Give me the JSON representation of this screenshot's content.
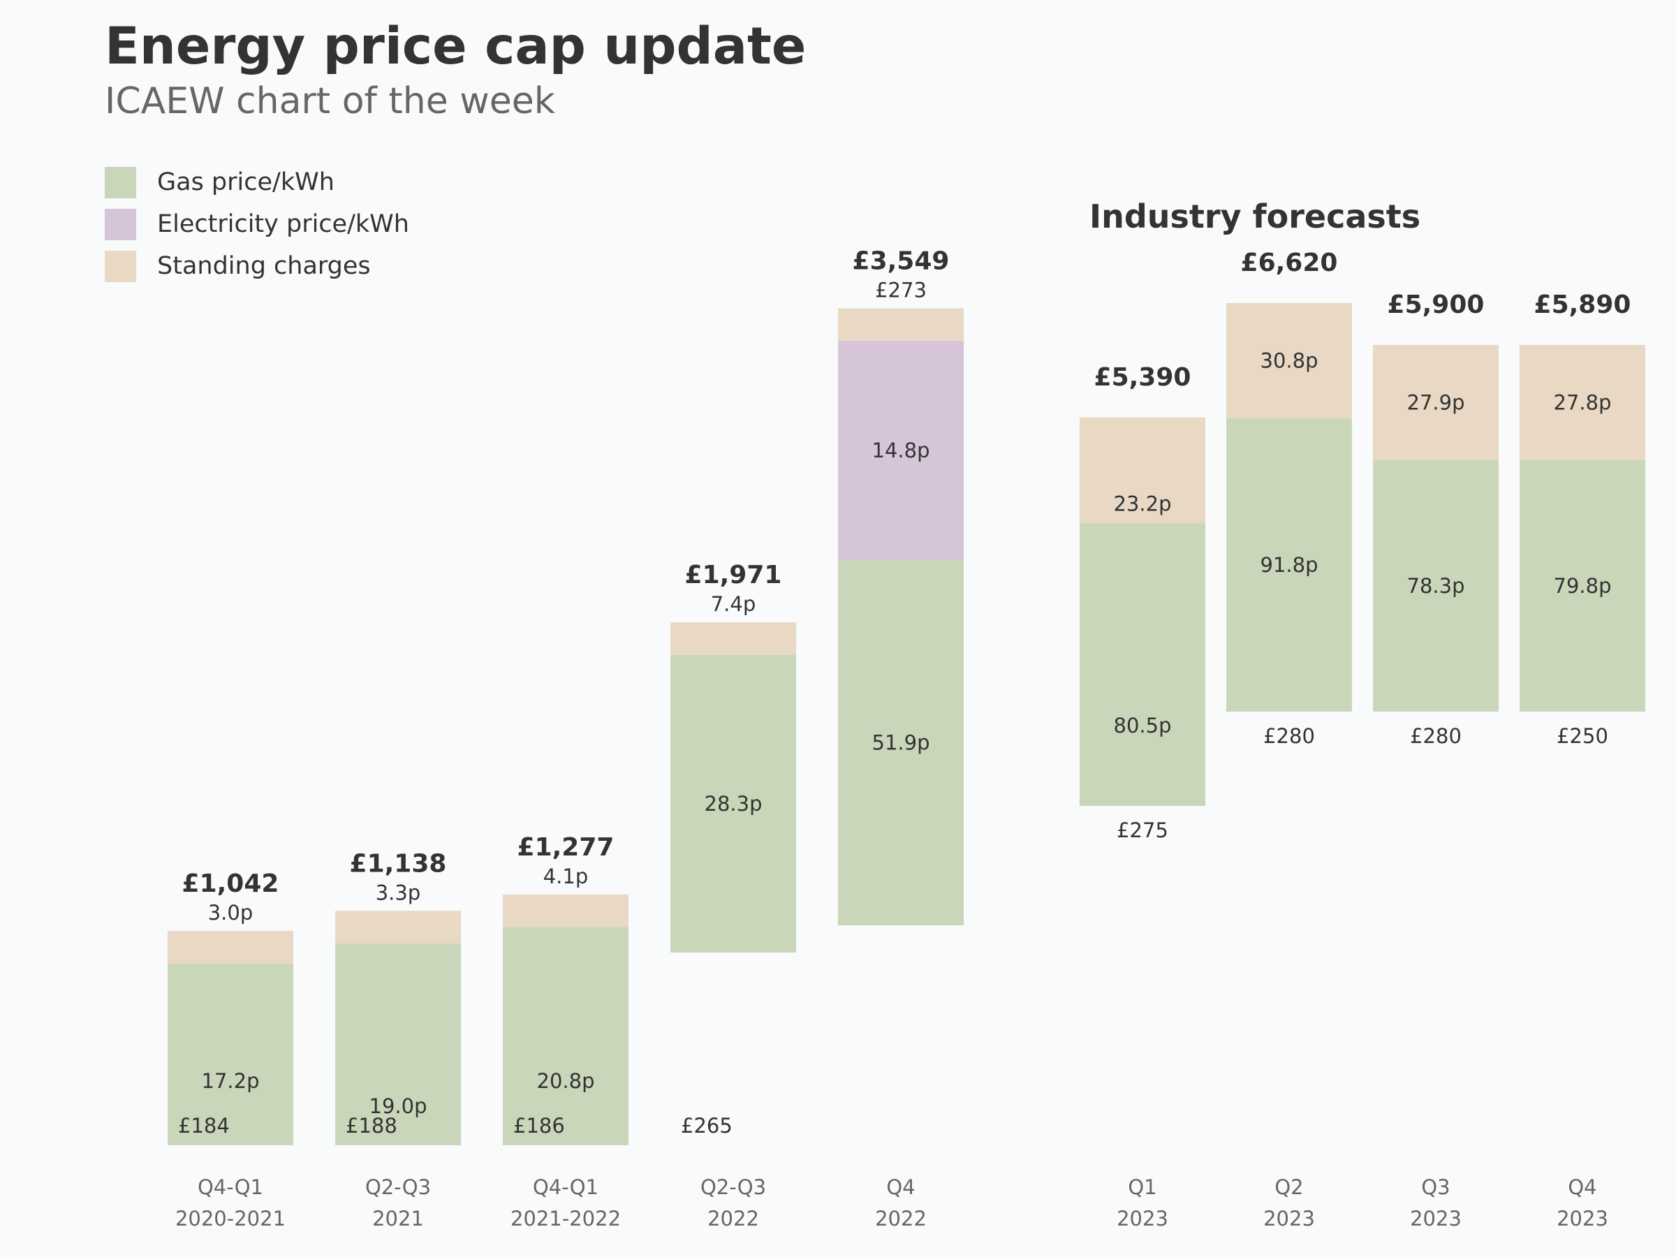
{
  "title": "Energy price cap update",
  "subtitle": "ICAEW chart of the week",
  "forecast_heading": "Industry forecasts",
  "colors": {
    "gas": "#c9d6b9",
    "electricity": "#d6c5d9",
    "standing": "#e8d8c4",
    "background": "#f9fafb"
  },
  "legend": [
    {
      "name": "Gas price/kWh",
      "color": "#c9d6b9"
    },
    {
      "name": "Electricity price/kWh",
      "color": "#d6c5d9"
    },
    {
      "name": "Standing charges",
      "color": "#e8d8c4"
    }
  ],
  "chart_data": {
    "type": "bar",
    "stacked": true,
    "legend_position": "top-left",
    "grid": false,
    "ylim": [
      0,
      7000
    ],
    "bars": [
      {
        "tick": [
          "Q4-Q1",
          "2020-2021"
        ],
        "total": 1042,
        "total_label": "£1,042",
        "start": 0,
        "segments": [
          {
            "series": "gas",
            "value": 868,
            "label": "17.2p"
          },
          {
            "series": "standing",
            "value": 155,
            "label": "3.0p"
          }
        ],
        "base_label": "£184",
        "forecast": false
      },
      {
        "tick": [
          "Q2-Q3",
          "2021"
        ],
        "total": 1138,
        "total_label": "£1,138",
        "start": 0,
        "segments": [
          {
            "series": "gas",
            "value": 964,
            "label": "19.0p"
          },
          {
            "series": "standing",
            "value": 155,
            "label": "3.3p"
          }
        ],
        "base_label": "£188",
        "forecast": false
      },
      {
        "tick": [
          "Q4-Q1",
          "2021-2022"
        ],
        "total": 1277,
        "total_label": "£1,277",
        "start": 0,
        "segments": [
          {
            "series": "gas",
            "value": 1042,
            "label": "20.8p"
          },
          {
            "series": "standing",
            "value": 155,
            "label": "4.1p"
          }
        ],
        "base_label": "£186",
        "forecast": false
      },
      {
        "tick": [
          "Q2-Q3",
          "2022"
        ],
        "total": 1971,
        "total_label": "£1,971",
        "start": 920,
        "segments": [
          {
            "series": "gas",
            "value": 1421,
            "label": "28.3p"
          },
          {
            "series": "standing",
            "value": 155,
            "label": "7.4p"
          }
        ],
        "base_label": "£265",
        "forecast": false
      },
      {
        "tick": [
          "Q4",
          "2022"
        ],
        "total": 3549,
        "total_label": "£3,549",
        "start": 1050,
        "segments": [
          {
            "series": "gas",
            "value": 1745,
            "label": "51.9p"
          },
          {
            "series": "electricity",
            "value": 1045,
            "label": "14.8p"
          },
          {
            "series": "standing",
            "value": 155,
            "label": "£273"
          }
        ],
        "base_label": "",
        "forecast": false
      },
      {
        "tick": [
          "Q1",
          "2023"
        ],
        "total": 5390,
        "total_label": "£5,390",
        "start": 1620,
        "segments": [
          {
            "series": "gas",
            "value": 1349,
            "label": "80.5p"
          },
          {
            "series": "standing",
            "value": 505,
            "label": "23.2p"
          }
        ],
        "base_label": "£275",
        "forecast": true
      },
      {
        "tick": [
          "Q2",
          "2023"
        ],
        "total": 6620,
        "total_label": "£6,620",
        "start": 2070,
        "segments": [
          {
            "series": "gas",
            "value": 1400,
            "label": "91.8p"
          },
          {
            "series": "standing",
            "value": 550,
            "label": "30.8p"
          }
        ],
        "base_label": "£280",
        "forecast": true
      },
      {
        "tick": [
          "Q3",
          "2023"
        ],
        "total": 5900,
        "total_label": "£5,900",
        "start": 2070,
        "segments": [
          {
            "series": "gas",
            "value": 1200,
            "label": "78.3p"
          },
          {
            "series": "standing",
            "value": 550,
            "label": "27.9p"
          }
        ],
        "base_label": "£280",
        "forecast": true
      },
      {
        "tick": [
          "Q4",
          "2023"
        ],
        "total": 5890,
        "total_label": "£5,890",
        "start": 2070,
        "segments": [
          {
            "series": "gas",
            "value": 1200,
            "label": "79.8p"
          },
          {
            "series": "standing",
            "value": 550,
            "label": "27.8p"
          }
        ],
        "base_label": "£250",
        "forecast": true
      }
    ]
  }
}
